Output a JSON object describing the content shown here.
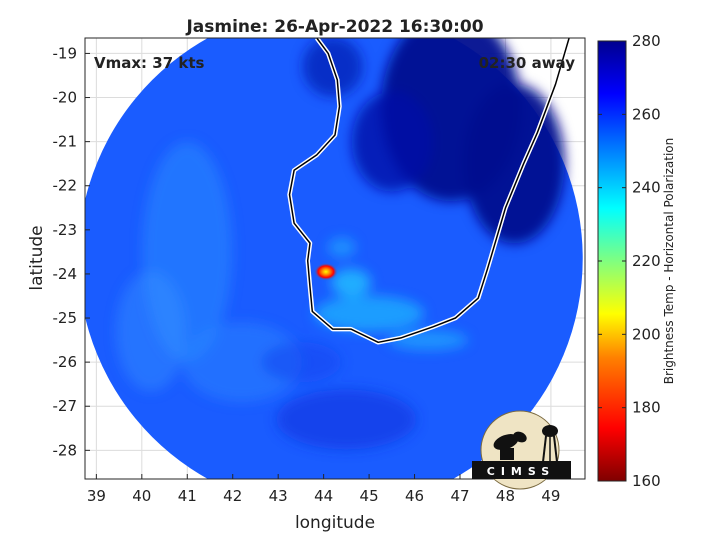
{
  "chart_data": {
    "type": "heatmap",
    "title": "Jasmine: 26-Apr-2022 16:30:00",
    "xlabel": "longitude",
    "ylabel": "latitude",
    "xlim": [
      38.75,
      49.75
    ],
    "ylim": [
      -28.65,
      -18.65
    ],
    "xticks": [
      39,
      40,
      41,
      42,
      43,
      44,
      45,
      46,
      47,
      48,
      49
    ],
    "yticks": [
      -19,
      -20,
      -21,
      -22,
      -23,
      -24,
      -25,
      -26,
      -27,
      -28
    ],
    "grid": true,
    "annotations": {
      "vmax": "Vmax: 37 kts",
      "time_offset": "02:30 away"
    },
    "colorbar": {
      "label": "Brightness Temp - Horizontal Polarization",
      "min": 160,
      "max": 280,
      "ticks": [
        280,
        260,
        240,
        220,
        200,
        180,
        160
      ],
      "colors": [
        "#7f0000",
        "#ff0000",
        "#ff8000",
        "#ffff00",
        "#80ff80",
        "#00ffff",
        "#0080ff",
        "#0000ff",
        "#00008f"
      ]
    },
    "swath": {
      "center": [
        44.15,
        -23.65
      ],
      "radius_deg": 5.55
    },
    "cyclone_core": {
      "center": [
        44.05,
        -23.95
      ],
      "min_temp": 195
    },
    "coastline": [
      [
        43.85,
        -18.65
      ],
      [
        44.1,
        -19.0
      ],
      [
        44.3,
        -19.6
      ],
      [
        44.35,
        -20.2
      ],
      [
        44.25,
        -20.85
      ],
      [
        43.85,
        -21.3
      ],
      [
        43.35,
        -21.65
      ],
      [
        43.25,
        -22.2
      ],
      [
        43.35,
        -22.85
      ],
      [
        43.7,
        -23.3
      ],
      [
        43.65,
        -23.7
      ],
      [
        43.7,
        -24.3
      ],
      [
        43.75,
        -24.85
      ],
      [
        44.2,
        -25.25
      ],
      [
        44.6,
        -25.25
      ],
      [
        45.2,
        -25.55
      ],
      [
        45.7,
        -25.45
      ],
      [
        46.4,
        -25.2
      ],
      [
        46.9,
        -25.0
      ],
      [
        47.4,
        -24.55
      ],
      [
        47.6,
        -23.9
      ],
      [
        48.0,
        -22.5
      ],
      [
        48.4,
        -21.5
      ],
      [
        48.7,
        -20.8
      ],
      [
        49.1,
        -19.7
      ],
      [
        49.4,
        -18.65
      ]
    ],
    "logo_text": "CIMSS"
  }
}
